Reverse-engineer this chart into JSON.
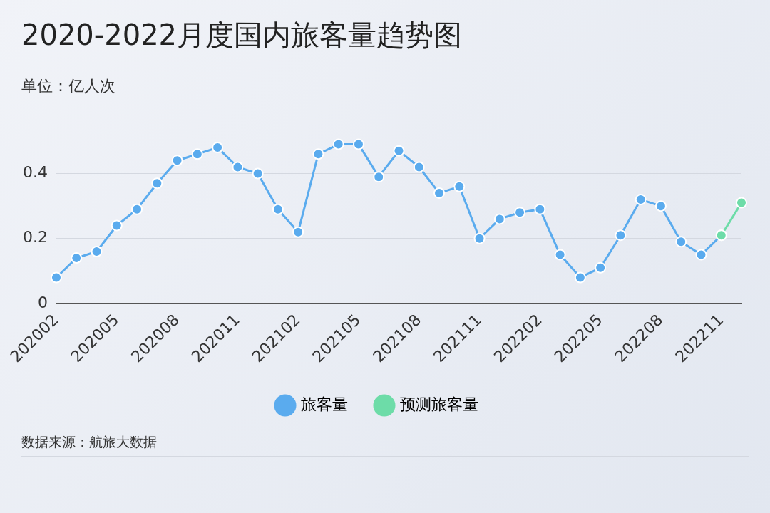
{
  "chart_data": {
    "type": "line",
    "title": "2020-2022月度国内旅客量趋势图",
    "subtitle": "单位：亿人次",
    "categories": [
      "202002",
      null,
      null,
      "202005",
      null,
      null,
      "202008",
      null,
      null,
      "202011",
      null,
      null,
      "202102",
      null,
      null,
      "202105",
      null,
      null,
      "202108",
      null,
      null,
      "202111",
      null,
      null,
      "202202",
      null,
      null,
      "202205",
      null,
      null,
      "202208",
      null,
      null,
      "202211",
      null
    ],
    "series": [
      {
        "name": "旅客量",
        "color": "#5aabee",
        "values": [
          0.08,
          0.14,
          0.16,
          0.24,
          0.29,
          0.37,
          0.44,
          0.46,
          0.48,
          0.42,
          0.4,
          0.29,
          0.22,
          0.46,
          0.49,
          0.49,
          0.39,
          0.47,
          0.42,
          0.34,
          0.36,
          0.2,
          0.26,
          0.28,
          0.29,
          0.15,
          0.08,
          0.11,
          0.21,
          0.32,
          0.3,
          0.19,
          0.15,
          0.21,
          null
        ]
      },
      {
        "name": "预测旅客量",
        "color": "#6ddca8",
        "values": [
          null,
          null,
          null,
          null,
          null,
          null,
          null,
          null,
          null,
          null,
          null,
          null,
          null,
          null,
          null,
          null,
          null,
          null,
          null,
          null,
          null,
          null,
          null,
          null,
          null,
          null,
          null,
          null,
          null,
          null,
          null,
          null,
          null,
          0.21,
          0.31
        ]
      }
    ],
    "ylim": [
      0,
      0.55
    ],
    "yticks": [
      0,
      0.2,
      0.4
    ],
    "grid": "y",
    "legend": "bottom",
    "marker": "circle",
    "line_style": "solid",
    "annotations": [
      "数据来源：航旅大数据"
    ]
  }
}
